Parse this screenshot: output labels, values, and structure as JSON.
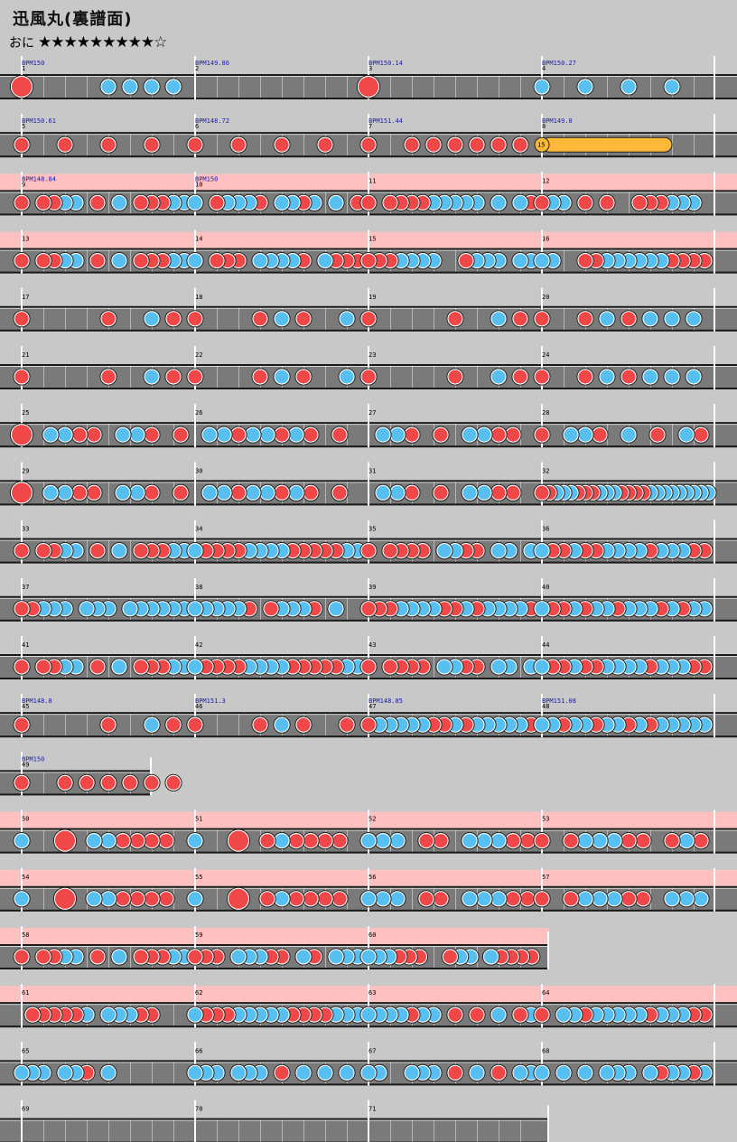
{
  "title": "迅風丸(裏譜面)",
  "difficulty": {
    "label": "おに",
    "stars": "★★★★★★★★★☆",
    "level": 9
  },
  "colors": {
    "background": "#c8c8c8",
    "lane": "#7a7a7a",
    "gogo_band": "#ffc0c0",
    "don": "#f04848",
    "ka": "#58c0f0",
    "drumroll": "#ffb838"
  },
  "measures_per_row": 4,
  "rows": [
    {
      "measures": [
        1,
        2,
        3,
        4
      ],
      "gogo": false,
      "labels": [
        "BPM150",
        "BPM149.86",
        "BPM150.14",
        "BPM150.27"
      ]
    },
    {
      "measures": [
        5,
        6,
        7,
        8
      ],
      "gogo": false,
      "labels": [
        "BPM150.61",
        "BPM148.72",
        "BPM151.44",
        "BPM149.8"
      ]
    },
    {
      "measures": [
        9,
        10,
        11,
        12
      ],
      "gogo": true,
      "labels": [
        "BPM148.84",
        "BPM150",
        "",
        ""
      ]
    },
    {
      "measures": [
        13,
        14,
        15,
        16
      ],
      "gogo": true,
      "labels": [
        "",
        "",
        "",
        ""
      ]
    },
    {
      "measures": [
        17,
        18,
        19,
        20
      ],
      "gogo": false,
      "labels": [
        "",
        "",
        "",
        ""
      ]
    },
    {
      "measures": [
        21,
        22,
        23,
        24
      ],
      "gogo": false,
      "labels": [
        "",
        "",
        "",
        ""
      ]
    },
    {
      "measures": [
        25,
        26,
        27,
        28
      ],
      "gogo": false,
      "labels": [
        "",
        "",
        "",
        ""
      ]
    },
    {
      "measures": [
        29,
        30,
        31,
        32
      ],
      "gogo": false,
      "labels": [
        "",
        "",
        "",
        ""
      ]
    },
    {
      "measures": [
        33,
        34,
        35,
        36
      ],
      "gogo": false,
      "labels": [
        "",
        "",
        "",
        ""
      ]
    },
    {
      "measures": [
        37,
        38,
        39,
        40
      ],
      "gogo": false,
      "labels": [
        "",
        "",
        "",
        ""
      ]
    },
    {
      "measures": [
        41,
        42,
        43,
        44
      ],
      "gogo": false,
      "labels": [
        "",
        "",
        "",
        ""
      ]
    },
    {
      "measures": [
        45,
        46,
        47,
        48
      ],
      "gogo": false,
      "labels": [
        "BPM148.8",
        "BPM151.3",
        "BPM148.85",
        "BPM151.08"
      ]
    },
    {
      "measures": [
        49
      ],
      "gogo": false,
      "labels": [
        "BPM150"
      ],
      "fraction": 0.75
    },
    {
      "measures": [
        50,
        51,
        52,
        53
      ],
      "gogo": true,
      "labels": [
        "",
        "",
        "",
        ""
      ]
    },
    {
      "measures": [
        54,
        55,
        56,
        57
      ],
      "gogo": true,
      "labels": [
        "",
        "",
        "",
        ""
      ]
    },
    {
      "measures": [
        58,
        59,
        60
      ],
      "gogo": true,
      "labels": [
        "",
        "",
        ""
      ]
    },
    {
      "measures": [
        61,
        62,
        63,
        64
      ],
      "gogo": true,
      "labels": [
        "",
        "",
        "",
        ""
      ]
    },
    {
      "measures": [
        65,
        66,
        67,
        68
      ],
      "gogo": false,
      "labels": [
        "",
        "",
        "",
        ""
      ]
    },
    {
      "measures": [
        69,
        70,
        71
      ],
      "gogo": false,
      "labels": [
        "",
        "",
        ""
      ]
    }
  ],
  "drumroll_label": "15",
  "notes": {
    "1": "D0000000k0k0k0k0",
    "3": "D000000000000000",
    "4": "k0k0k0k0",
    "5": "d0d0d0d0",
    "6": "d0d0d0d0",
    "7": "d0dddddd",
    "9": "d0ddkk0d0k0dddkk",
    "10": "k0dkkkd0kkdk0k0d",
    "11": "d0ddddkkkkk0k0kd",
    "12": "dkk0d0d00dddkkk0",
    "13": "d0ddkk0d0k0dddkk",
    "14": "k0ddd0kkkkd0kddd",
    "15": "dddkkkk00dkkk0kk",
    "16": "kk00ddkkkkkkdddd",
    "17": "d000d0kd",
    "18": "d00dkd0k",
    "19": "d000d0kd",
    "20": "d0dkdkkk",
    "25": "D0kkdd0kkd0d",
    "26": "0kkdkkdkd0d0",
    "27": "0kkd0d0kkdd0",
    "28": "d0kkd0k0d0kd",
    "32": "ddkkkdddkkkddddkkkkkkkkk",
    "33": "d0ddkk0d0k0dddkk",
    "34": "kddddkkkkdddddkk",
    "35": "d0dddd0kkdd0kk0k",
    "36": "kddkddkkkkdkkkdd",
    "37": "ddkkk0kkk0kkkkkk",
    "38": "kkkkkd0dkkkd0k00",
    "39": "dddkkkkddkdkkkkd",
    "40": "kddkdkkdkkkdkdkk",
    "41": "d0ddkk0d0k0dddkk",
    "42": "kddddkkkkdddddkk",
    "43": "d0dddd0kkdd0kk0k",
    "44": "kddkddkkkkdkkkdd",
    "45": "d000d0kd",
    "46": "d00dkd0d",
    "47": "dkkkkkddkdkkkkkd",
    "48": "kkdkkdkkdkdkkkkk",
    "49": "d0dddddd",
    "50": "k00D0kkdddd0",
    "51": "k00D0dkdddd0",
    "52": "kkk0dd0kkkdd",
    "53": "d0dkkkdd0dkd",
    "54": "k00D0kkdddd0",
    "55": "k00D0dkdddd0",
    "56": "kkk0dd0kkkdd",
    "57": "d0dkkkdd0kkk",
    "58": "d0ddkk0d0k0dddkk",
    "59": "ddd0kkkdd0kd0kkk",
    "60": "kkkddd00dkk0kdddd",
    "61": "0dddddk0kkkdd000",
    "62": "kdddkkkkkddddkkk",
    "63": "kkkkdkk0d0d0k0dk",
    "64": "d0kkdkkkkkdkkkdd",
    "65": "kkk0kkd0k0000000",
    "66": "kkk0kkk0d0k0k0k0",
    "67": "kk00kkk0d0k0d0kk",
    "68": "k0k0k0kkk0kdkkdk"
  },
  "note_aliases": {
    "21": "17",
    "22": "18",
    "23": "19",
    "24": "20",
    "29": "25",
    "30": "26",
    "31": "27"
  },
  "drumroll": {
    "measure": 8,
    "start": 0.0,
    "end": 0.75,
    "notes_before": "ddddd0dd"
  }
}
